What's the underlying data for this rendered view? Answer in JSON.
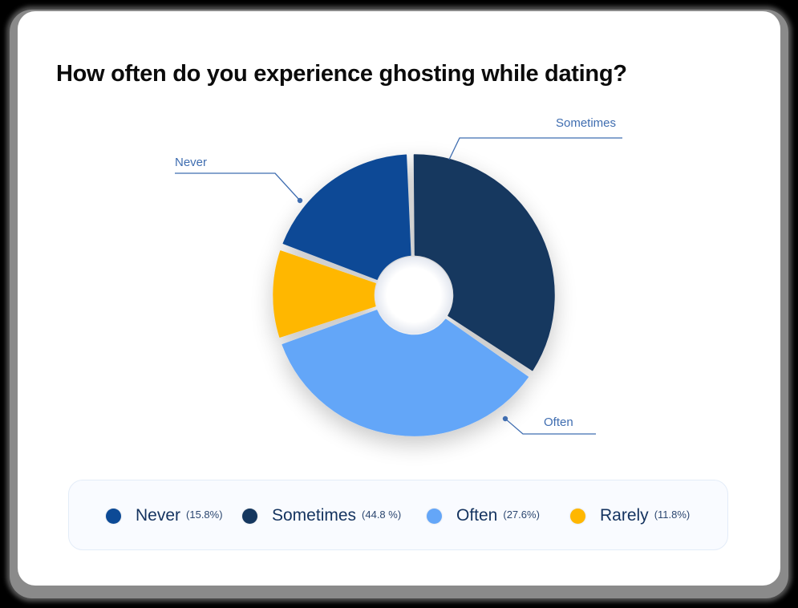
{
  "title": "How often do you experience ghosting while dating?",
  "chart_data": {
    "type": "pie",
    "variant": "donut",
    "title": "How often do you experience ghosting while dating?",
    "categories": [
      "Never",
      "Sometimes",
      "Often",
      "Rarely"
    ],
    "values": [
      15.8,
      44.8,
      27.6,
      11.8
    ],
    "value_labels": [
      "(15.8%)",
      "(44.8 %)",
      "(27.6%)",
      "(11.8%)"
    ],
    "colors": [
      "#0C4A96",
      "#15375F",
      "#64A6F8",
      "#FFB700"
    ],
    "callout_labels": [
      "Never",
      "Sometimes",
      "Often"
    ],
    "legend_position": "bottom",
    "grid": false
  },
  "callouts": {
    "never": "Never",
    "sometimes": "Sometimes",
    "often": "Often"
  },
  "legend": [
    {
      "name": "Never",
      "pct": "(15.8%)",
      "color": "#0C4A96"
    },
    {
      "name": "Sometimes",
      "pct": "(44.8 %)",
      "color": "#15375F"
    },
    {
      "name": "Often",
      "pct": "(27.6%)",
      "color": "#64A6F8"
    },
    {
      "name": "Rarely",
      "pct": "(11.8%)",
      "color": "#FFB700"
    }
  ]
}
